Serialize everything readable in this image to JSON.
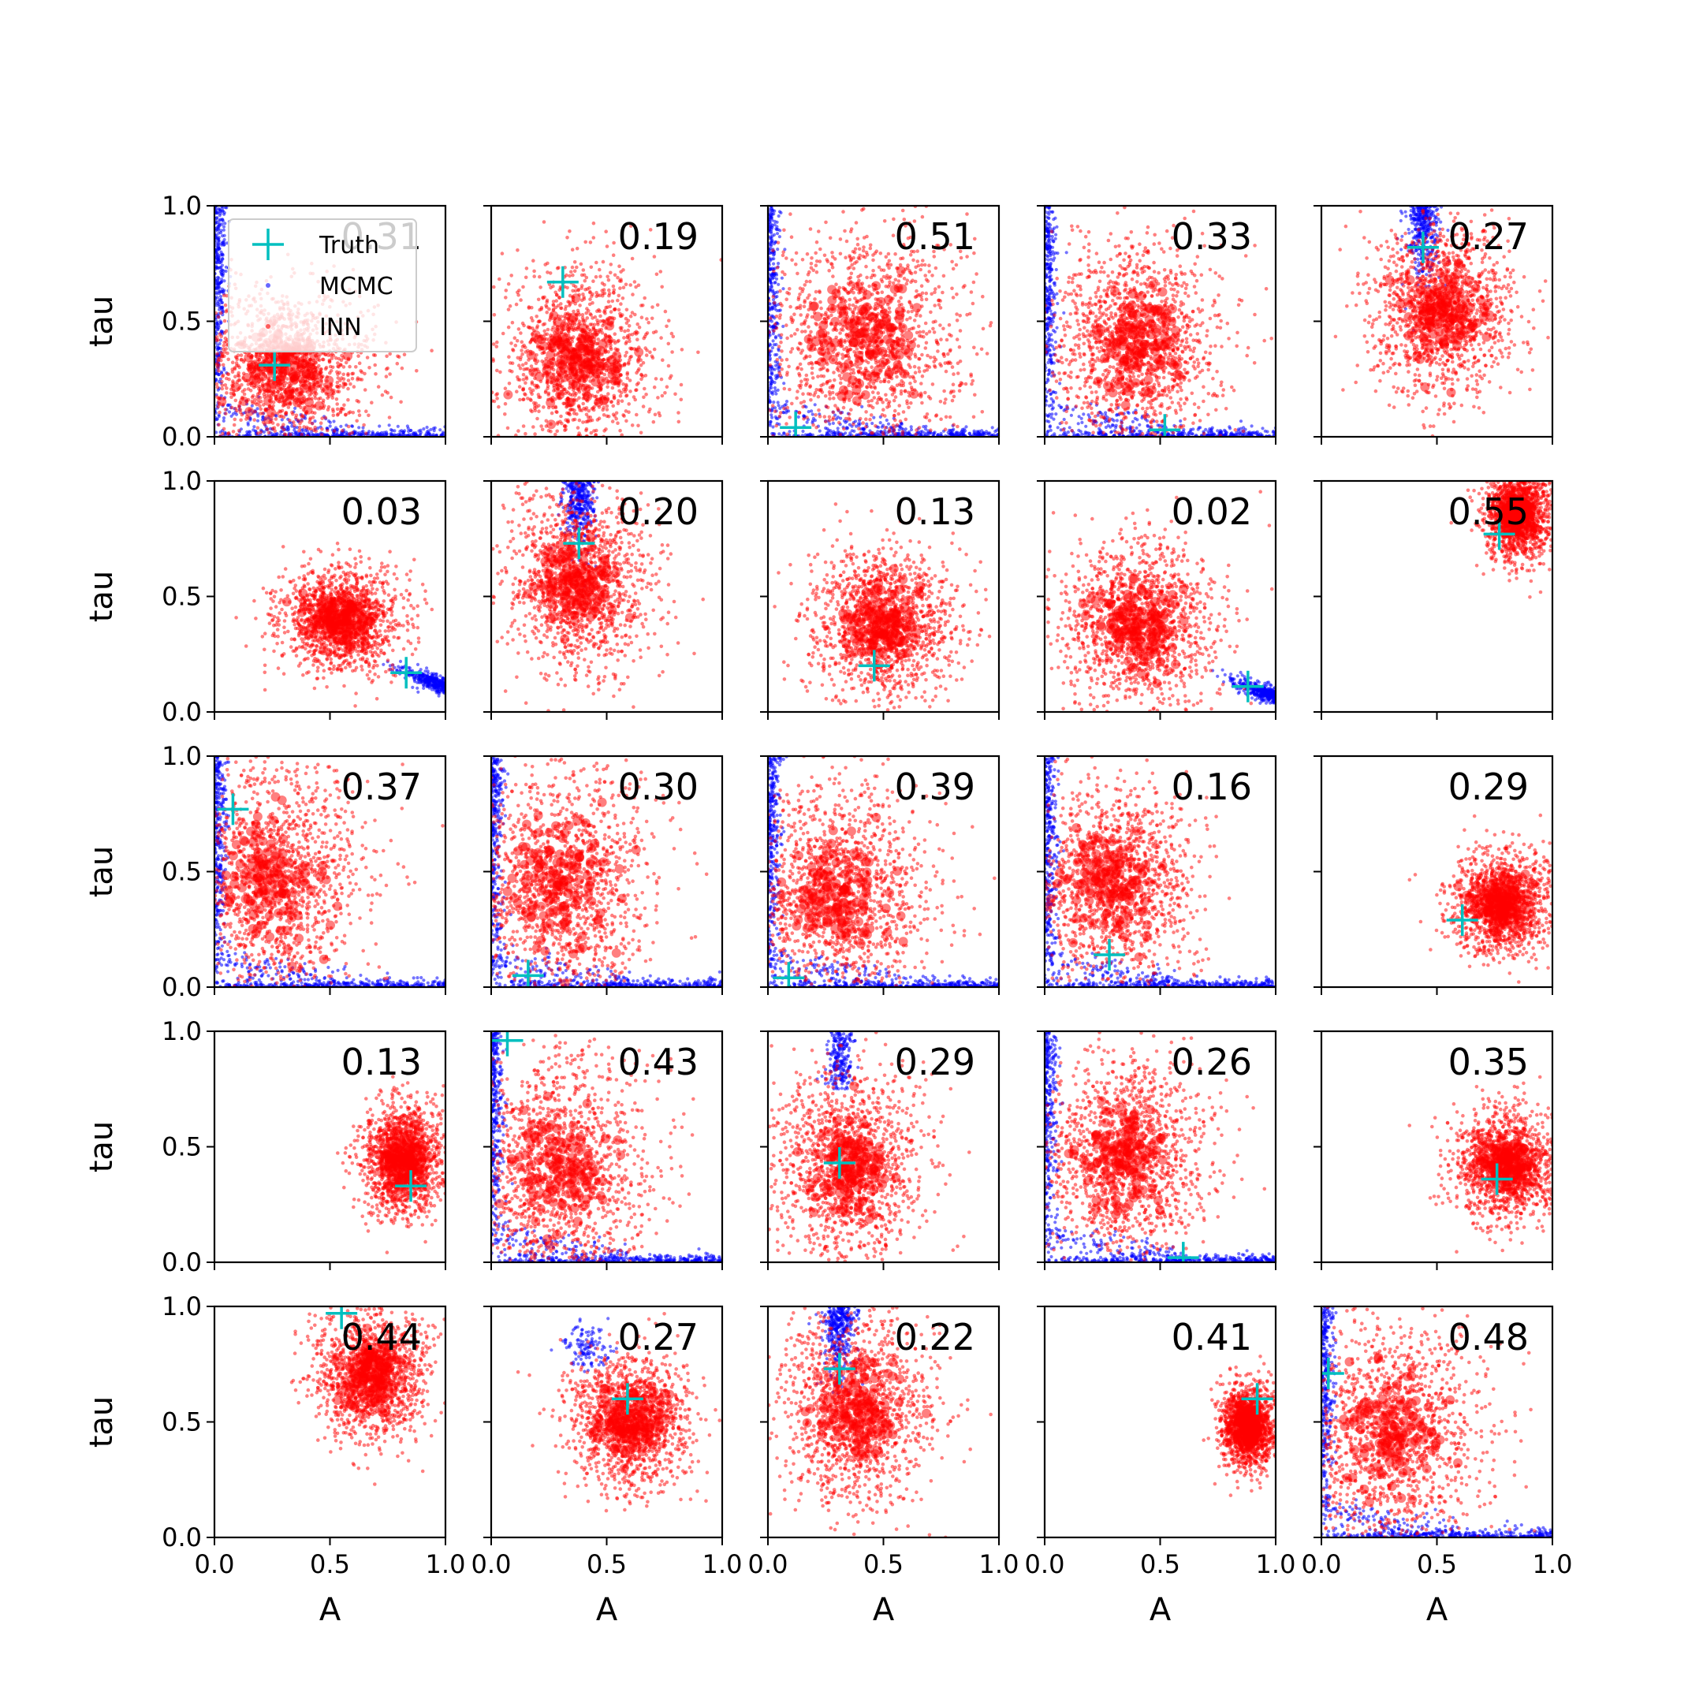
{
  "chart_data": {
    "type": "scatter",
    "xlabel": "A",
    "ylabel": "tau",
    "xlim": [
      0,
      1
    ],
    "ylim": [
      0,
      1
    ],
    "xticks": [
      0.0,
      0.5,
      1.0
    ],
    "yticks": [
      0.0,
      0.5,
      1.0
    ],
    "tick_labels": [
      "0.0",
      "0.5",
      "1.0"
    ],
    "grid": false,
    "rows": 5,
    "cols": 5,
    "legend": {
      "placement": "upper-left of first panel",
      "entries": [
        {
          "label": "Truth",
          "marker": "plus",
          "color": "#00bfbf"
        },
        {
          "label": "MCMC",
          "marker": "dot",
          "color": "#0000ff"
        },
        {
          "label": "INN",
          "marker": "dot",
          "color": "#ff0000"
        }
      ]
    },
    "colors": {
      "truth": "#00bfbf",
      "mcmc": "#0000ff",
      "inn": "#ff0000"
    },
    "panels": [
      {
        "label": "0.31",
        "truth": [
          0.26,
          0.31
        ],
        "inn": {
          "cx": 0.3,
          "cy": 0.3,
          "sx": 0.2,
          "sy": 0.17
        },
        "mcmc": "corner-L"
      },
      {
        "label": "0.19",
        "truth": [
          0.31,
          0.67
        ],
        "inn": {
          "cx": 0.38,
          "cy": 0.33,
          "sx": 0.17,
          "sy": 0.2
        },
        "mcmc": "none"
      },
      {
        "label": "0.51",
        "truth": [
          0.12,
          0.04
        ],
        "inn": {
          "cx": 0.42,
          "cy": 0.42,
          "sx": 0.22,
          "sy": 0.25
        },
        "mcmc": "corner-L"
      },
      {
        "label": "0.33",
        "truth": [
          0.52,
          0.03
        ],
        "inn": {
          "cx": 0.4,
          "cy": 0.4,
          "sx": 0.18,
          "sy": 0.22
        },
        "mcmc": "corner-L"
      },
      {
        "label": "0.27",
        "truth": [
          0.44,
          0.82
        ],
        "inn": {
          "cx": 0.53,
          "cy": 0.55,
          "sx": 0.15,
          "sy": 0.18
        },
        "mcmc": "column-top"
      },
      {
        "label": "0.03",
        "truth": [
          0.83,
          0.17
        ],
        "inn": {
          "cx": 0.55,
          "cy": 0.4,
          "sx": 0.13,
          "sy": 0.11
        },
        "mcmc": "edge-right"
      },
      {
        "label": "0.20",
        "truth": [
          0.38,
          0.73
        ],
        "inn": {
          "cx": 0.38,
          "cy": 0.55,
          "sx": 0.16,
          "sy": 0.2
        },
        "mcmc": "column-top"
      },
      {
        "label": "0.13",
        "truth": [
          0.46,
          0.2
        ],
        "inn": {
          "cx": 0.5,
          "cy": 0.38,
          "sx": 0.16,
          "sy": 0.16
        },
        "mcmc": "none"
      },
      {
        "label": "0.02",
        "truth": [
          0.88,
          0.11
        ],
        "inn": {
          "cx": 0.4,
          "cy": 0.38,
          "sx": 0.17,
          "sy": 0.18
        },
        "mcmc": "edge-right"
      },
      {
        "label": "0.55",
        "truth": [
          0.77,
          0.77
        ],
        "inn": {
          "cx": 0.85,
          "cy": 0.85,
          "sx": 0.07,
          "sy": 0.1
        },
        "mcmc": "none"
      },
      {
        "label": "0.37",
        "truth": [
          0.08,
          0.77
        ],
        "inn": {
          "cx": 0.25,
          "cy": 0.48,
          "sx": 0.2,
          "sy": 0.25
        },
        "mcmc": "corner-L"
      },
      {
        "label": "0.30",
        "truth": [
          0.16,
          0.05
        ],
        "inn": {
          "cx": 0.3,
          "cy": 0.45,
          "sx": 0.2,
          "sy": 0.25
        },
        "mcmc": "corner-L"
      },
      {
        "label": "0.39",
        "truth": [
          0.09,
          0.04
        ],
        "inn": {
          "cx": 0.3,
          "cy": 0.4,
          "sx": 0.2,
          "sy": 0.22
        },
        "mcmc": "corner-L"
      },
      {
        "label": "0.16",
        "truth": [
          0.28,
          0.14
        ],
        "inn": {
          "cx": 0.3,
          "cy": 0.45,
          "sx": 0.18,
          "sy": 0.22
        },
        "mcmc": "corner-L"
      },
      {
        "label": "0.29",
        "truth": [
          0.61,
          0.29
        ],
        "inn": {
          "cx": 0.78,
          "cy": 0.36,
          "sx": 0.11,
          "sy": 0.11
        },
        "mcmc": "none"
      },
      {
        "label": "0.13",
        "truth": [
          0.85,
          0.33
        ],
        "inn": {
          "cx": 0.82,
          "cy": 0.45,
          "sx": 0.09,
          "sy": 0.12
        },
        "mcmc": "none"
      },
      {
        "label": "0.43",
        "truth": [
          0.07,
          0.96
        ],
        "inn": {
          "cx": 0.3,
          "cy": 0.4,
          "sx": 0.2,
          "sy": 0.25
        },
        "mcmc": "corner-L"
      },
      {
        "label": "0.29",
        "truth": [
          0.31,
          0.43
        ],
        "inn": {
          "cx": 0.35,
          "cy": 0.4,
          "sx": 0.16,
          "sy": 0.2
        },
        "mcmc": "column-mid"
      },
      {
        "label": "0.26",
        "truth": [
          0.6,
          0.02
        ],
        "inn": {
          "cx": 0.35,
          "cy": 0.45,
          "sx": 0.18,
          "sy": 0.22
        },
        "mcmc": "corner-L"
      },
      {
        "label": "0.35",
        "truth": [
          0.76,
          0.36
        ],
        "inn": {
          "cx": 0.8,
          "cy": 0.42,
          "sx": 0.11,
          "sy": 0.12
        },
        "mcmc": "none"
      },
      {
        "label": "0.44",
        "truth": [
          0.55,
          0.97
        ],
        "inn": {
          "cx": 0.68,
          "cy": 0.7,
          "sx": 0.12,
          "sy": 0.14
        },
        "mcmc": "none"
      },
      {
        "label": "0.27",
        "truth": [
          0.59,
          0.6
        ],
        "inn": {
          "cx": 0.6,
          "cy": 0.5,
          "sx": 0.13,
          "sy": 0.14
        },
        "mcmc": "cluster-upper-left"
      },
      {
        "label": "0.22",
        "truth": [
          0.31,
          0.73
        ],
        "inn": {
          "cx": 0.38,
          "cy": 0.55,
          "sx": 0.17,
          "sy": 0.2
        },
        "mcmc": "column-top"
      },
      {
        "label": "0.41",
        "truth": [
          0.92,
          0.6
        ],
        "inn": {
          "cx": 0.88,
          "cy": 0.48,
          "sx": 0.06,
          "sy": 0.09
        },
        "mcmc": "none"
      },
      {
        "label": "0.48",
        "truth": [
          0.03,
          0.71
        ],
        "inn": {
          "cx": 0.3,
          "cy": 0.45,
          "sx": 0.2,
          "sy": 0.25
        },
        "mcmc": "corner-L"
      }
    ]
  }
}
